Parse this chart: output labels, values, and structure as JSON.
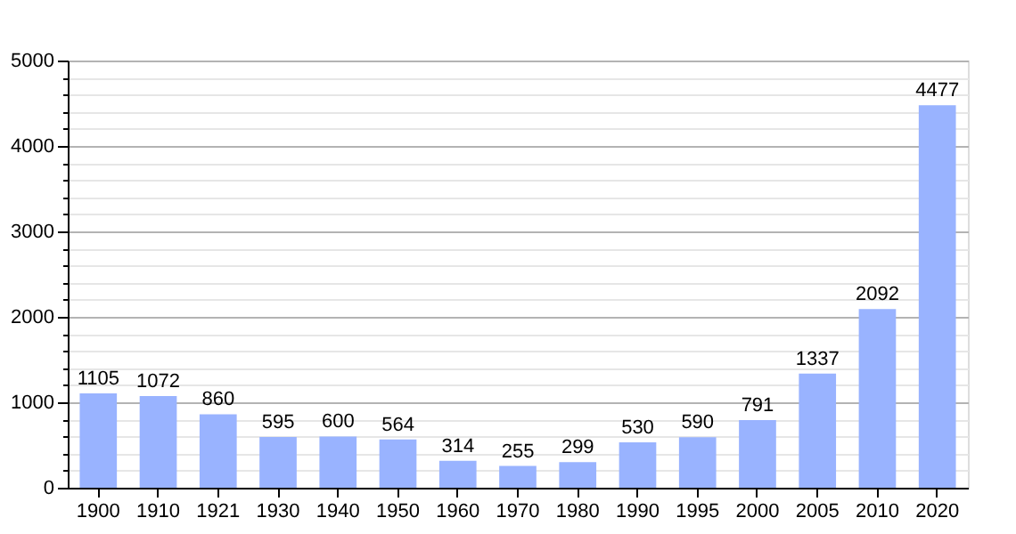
{
  "chart_data": {
    "type": "bar",
    "categories": [
      "1900",
      "1910",
      "1921",
      "1930",
      "1940",
      "1950",
      "1960",
      "1970",
      "1980",
      "1990",
      "1995",
      "2000",
      "2005",
      "2010",
      "2020"
    ],
    "values": [
      1105,
      1072,
      860,
      595,
      600,
      564,
      314,
      255,
      299,
      530,
      590,
      791,
      1337,
      2092,
      4477
    ],
    "color": "#99b3ff",
    "ylim": [
      0,
      5000
    ],
    "yticks": [
      0,
      {
        "value": 200,
        "label": null
      },
      {
        "value": 400,
        "label": null
      },
      {
        "value": 600,
        "label": null
      },
      {
        "value": 800,
        "label": null
      },
      1000,
      {
        "value": 1200,
        "label": null
      },
      {
        "value": 1400,
        "label": null
      },
      {
        "value": 1600,
        "label": null
      },
      {
        "value": 1800,
        "label": null
      },
      2000,
      {
        "value": 2200,
        "label": null
      },
      {
        "value": 2400,
        "label": null
      },
      {
        "value": 2600,
        "label": null
      },
      {
        "value": 2800,
        "label": null
      },
      3000,
      {
        "value": 3200,
        "label": null
      },
      {
        "value": 3400,
        "label": null
      },
      {
        "value": 3600,
        "label": null
      },
      {
        "value": 3800,
        "label": null
      },
      4000,
      {
        "value": 4200,
        "label": null
      },
      {
        "value": 4400,
        "label": null
      },
      {
        "value": 4600,
        "label": null
      },
      {
        "value": 4800,
        "label": null
      },
      5000
    ],
    "grid": true,
    "data_labels": true
  }
}
